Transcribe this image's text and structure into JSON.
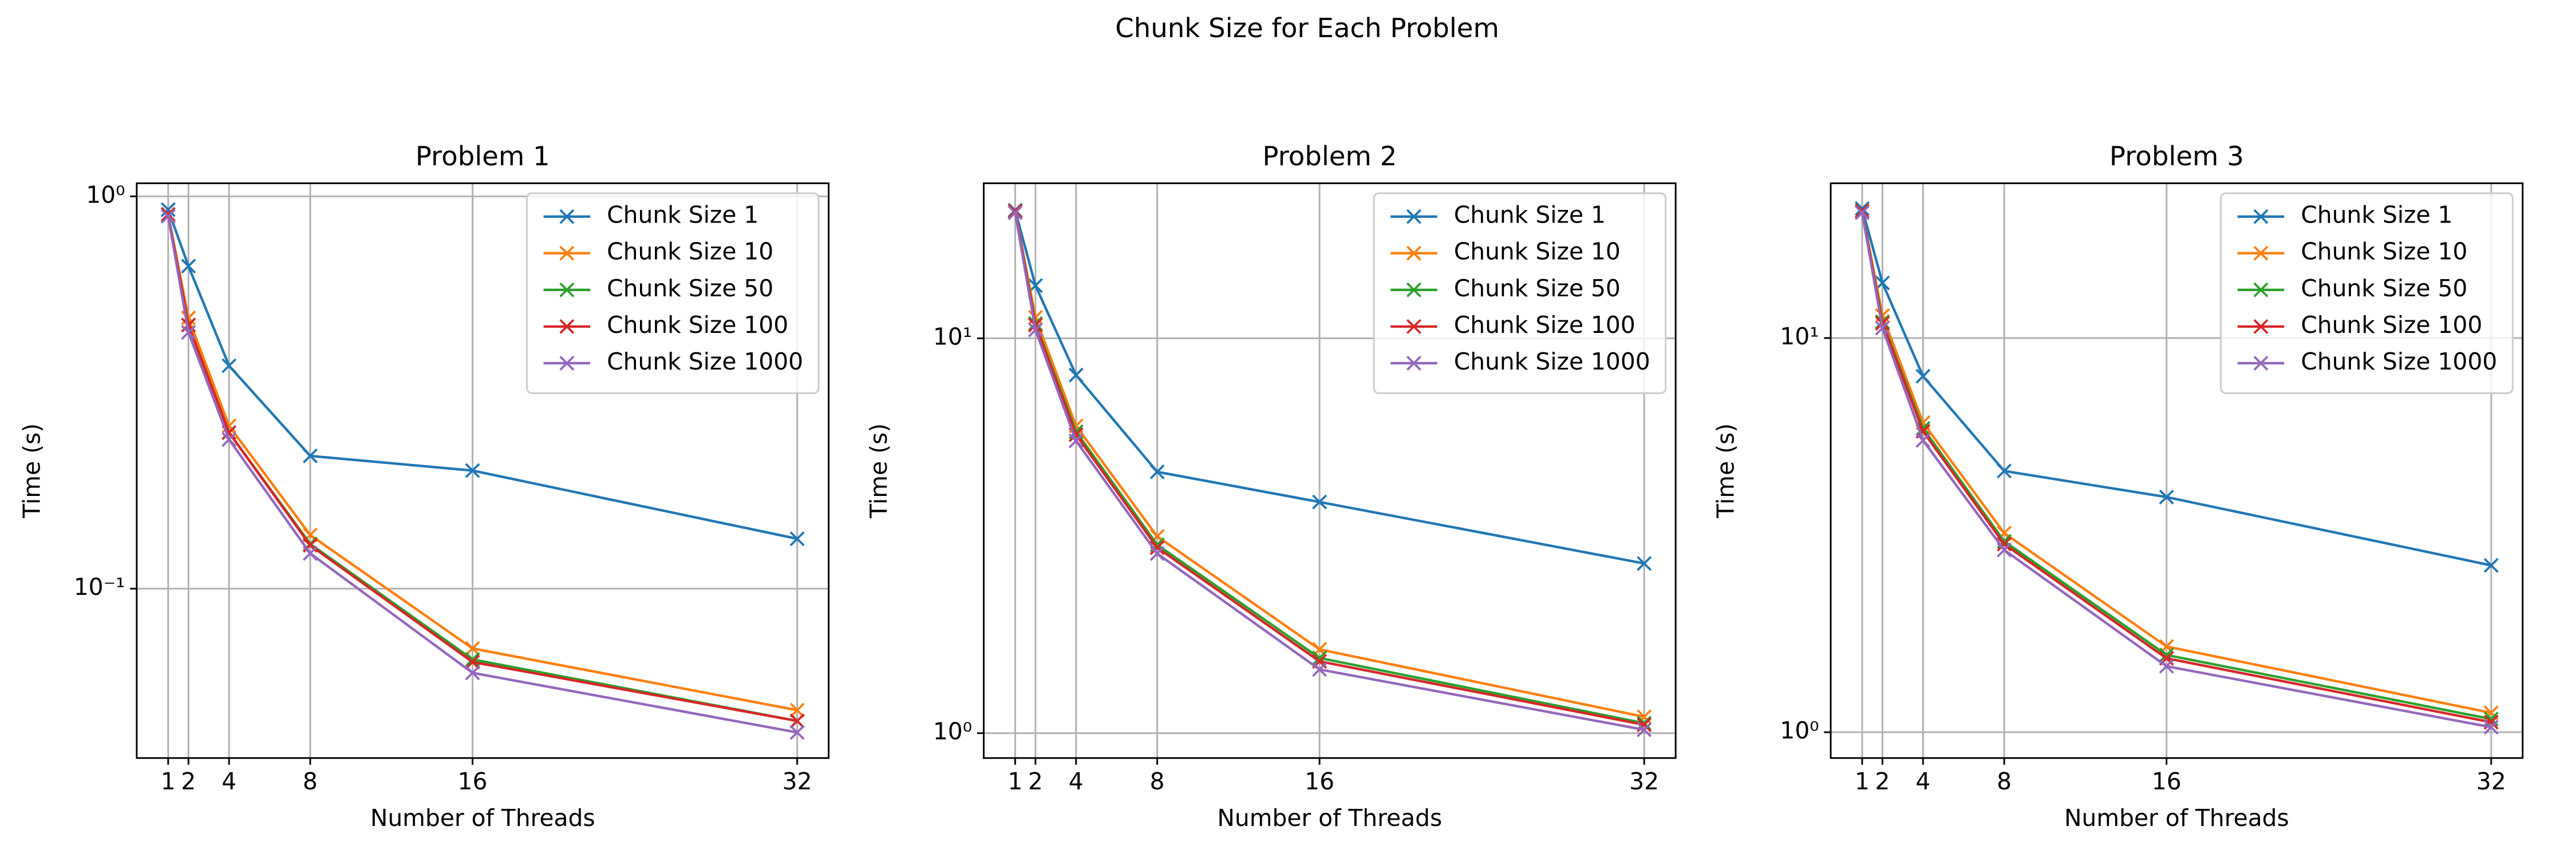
{
  "title": "Chunk Size for Each Problem",
  "chart_data": [
    {
      "type": "line",
      "title": "Problem 1",
      "x_label": "Number of Threads",
      "y_label": "Time (s)",
      "x": [
        1,
        2,
        4,
        8,
        16,
        32
      ],
      "xlim": [
        -0.55,
        33.55
      ],
      "xticks": [
        1,
        2,
        4,
        8,
        16,
        32
      ],
      "log_y": true,
      "ylim": [
        0.037,
        1.08
      ],
      "yticks": [
        {
          "value": 0.1,
          "label": "10⁻¹"
        },
        {
          "value": 1,
          "label": "10⁰"
        }
      ],
      "grid": true,
      "legend": "upper right",
      "series": [
        {
          "name": "Chunk Size 1",
          "color": "#1f77b4",
          "values": [
            0.925,
            0.664,
            0.37,
            0.218,
            0.2,
            0.134
          ]
        },
        {
          "name": "Chunk Size 10",
          "color": "#ff7f0e",
          "values": [
            0.9,
            0.49,
            0.26,
            0.137,
            0.0704,
            0.049
          ]
        },
        {
          "name": "Chunk Size 50",
          "color": "#2ca02c",
          "values": [
            0.9,
            0.47,
            0.25,
            0.13,
            0.066,
            0.046
          ]
        },
        {
          "name": "Chunk Size 100",
          "color": "#d62728",
          "values": [
            0.9,
            0.47,
            0.25,
            0.129,
            0.065,
            0.046
          ]
        },
        {
          "name": "Chunk Size 1000",
          "color": "#9467bd",
          "values": [
            0.89,
            0.45,
            0.24,
            0.123,
            0.061,
            0.043
          ]
        }
      ]
    },
    {
      "type": "line",
      "title": "Problem 2",
      "x_label": "Number of Threads",
      "y_label": "Time (s)",
      "x": [
        1,
        2,
        4,
        8,
        16,
        32
      ],
      "xlim": [
        -0.55,
        33.55
      ],
      "xticks": [
        1,
        2,
        4,
        8,
        16,
        32
      ],
      "log_y": true,
      "ylim": [
        0.865,
        24.7
      ],
      "yticks": [
        {
          "value": 1,
          "label": "10⁰"
        },
        {
          "value": 10,
          "label": "10¹"
        }
      ],
      "grid": true,
      "legend": "upper right",
      "series": [
        {
          "name": "Chunk Size 1",
          "color": "#1f77b4",
          "values": [
            21.1,
            13.6,
            8.07,
            4.59,
            3.85,
            2.69
          ]
        },
        {
          "name": "Chunk Size 10",
          "color": "#ff7f0e",
          "values": [
            21,
            11.3,
            6.0,
            3.15,
            1.63,
            1.1
          ]
        },
        {
          "name": "Chunk Size 50",
          "color": "#2ca02c",
          "values": [
            21,
            10.9,
            5.8,
            3.0,
            1.55,
            1.06
          ]
        },
        {
          "name": "Chunk Size 100",
          "color": "#d62728",
          "values": [
            21,
            10.8,
            5.7,
            2.95,
            1.52,
            1.05
          ]
        },
        {
          "name": "Chunk Size 1000",
          "color": "#9467bd",
          "values": [
            20.8,
            10.5,
            5.5,
            2.85,
            1.45,
            1.02
          ]
        }
      ]
    },
    {
      "type": "line",
      "title": "Problem 3",
      "x_label": "Number of Threads",
      "y_label": "Time (s)",
      "x": [
        1,
        2,
        4,
        8,
        16,
        32
      ],
      "xlim": [
        -0.55,
        33.55
      ],
      "xticks": [
        1,
        2,
        4,
        8,
        16,
        32
      ],
      "log_y": true,
      "ylim": [
        0.86,
        24.7
      ],
      "yticks": [
        {
          "value": 1,
          "label": "10⁰"
        },
        {
          "value": 10,
          "label": "10¹"
        }
      ],
      "grid": true,
      "legend": "upper right",
      "series": [
        {
          "name": "Chunk Size 1",
          "color": "#1f77b4",
          "values": [
            21.3,
            13.8,
            8.0,
            4.6,
            3.95,
            2.65
          ]
        },
        {
          "name": "Chunk Size 10",
          "color": "#ff7f0e",
          "values": [
            21,
            11.4,
            6.1,
            3.2,
            1.65,
            1.12
          ]
        },
        {
          "name": "Chunk Size 50",
          "color": "#2ca02c",
          "values": [
            21,
            11.0,
            5.9,
            3.05,
            1.57,
            1.08
          ]
        },
        {
          "name": "Chunk Size 100",
          "color": "#d62728",
          "values": [
            21,
            10.9,
            5.8,
            3.0,
            1.54,
            1.06
          ]
        },
        {
          "name": "Chunk Size 1000",
          "color": "#9467bd",
          "values": [
            20.8,
            10.6,
            5.5,
            2.9,
            1.47,
            1.03
          ]
        }
      ]
    }
  ]
}
